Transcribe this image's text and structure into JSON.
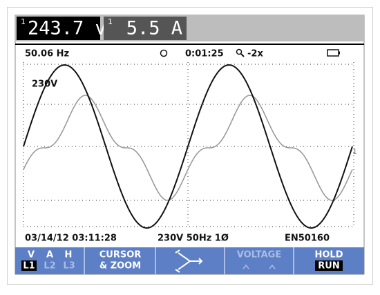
{
  "readings": [
    {
      "channel": "1",
      "value": "243.7 v"
    },
    {
      "channel": "1",
      "value": "5.5 A"
    }
  ],
  "status": {
    "frequency": "50.06 Hz",
    "time": "0:01:25",
    "zoom": "-2x"
  },
  "scale_label": "230V",
  "trace_marker": "1",
  "footer": {
    "datetime": "03/14/12 03:11:28",
    "config": "230V 50Hz 1Ø",
    "standard": "EN50160"
  },
  "menu": {
    "phases": [
      "V",
      "A",
      "H"
    ],
    "lines": [
      "L1",
      "L2",
      "L3"
    ],
    "cursor": [
      "CURSOR",
      "& ZOOM"
    ],
    "voltage": "VOLTAGE",
    "hold": "HOLD",
    "run": "RUN"
  }
}
